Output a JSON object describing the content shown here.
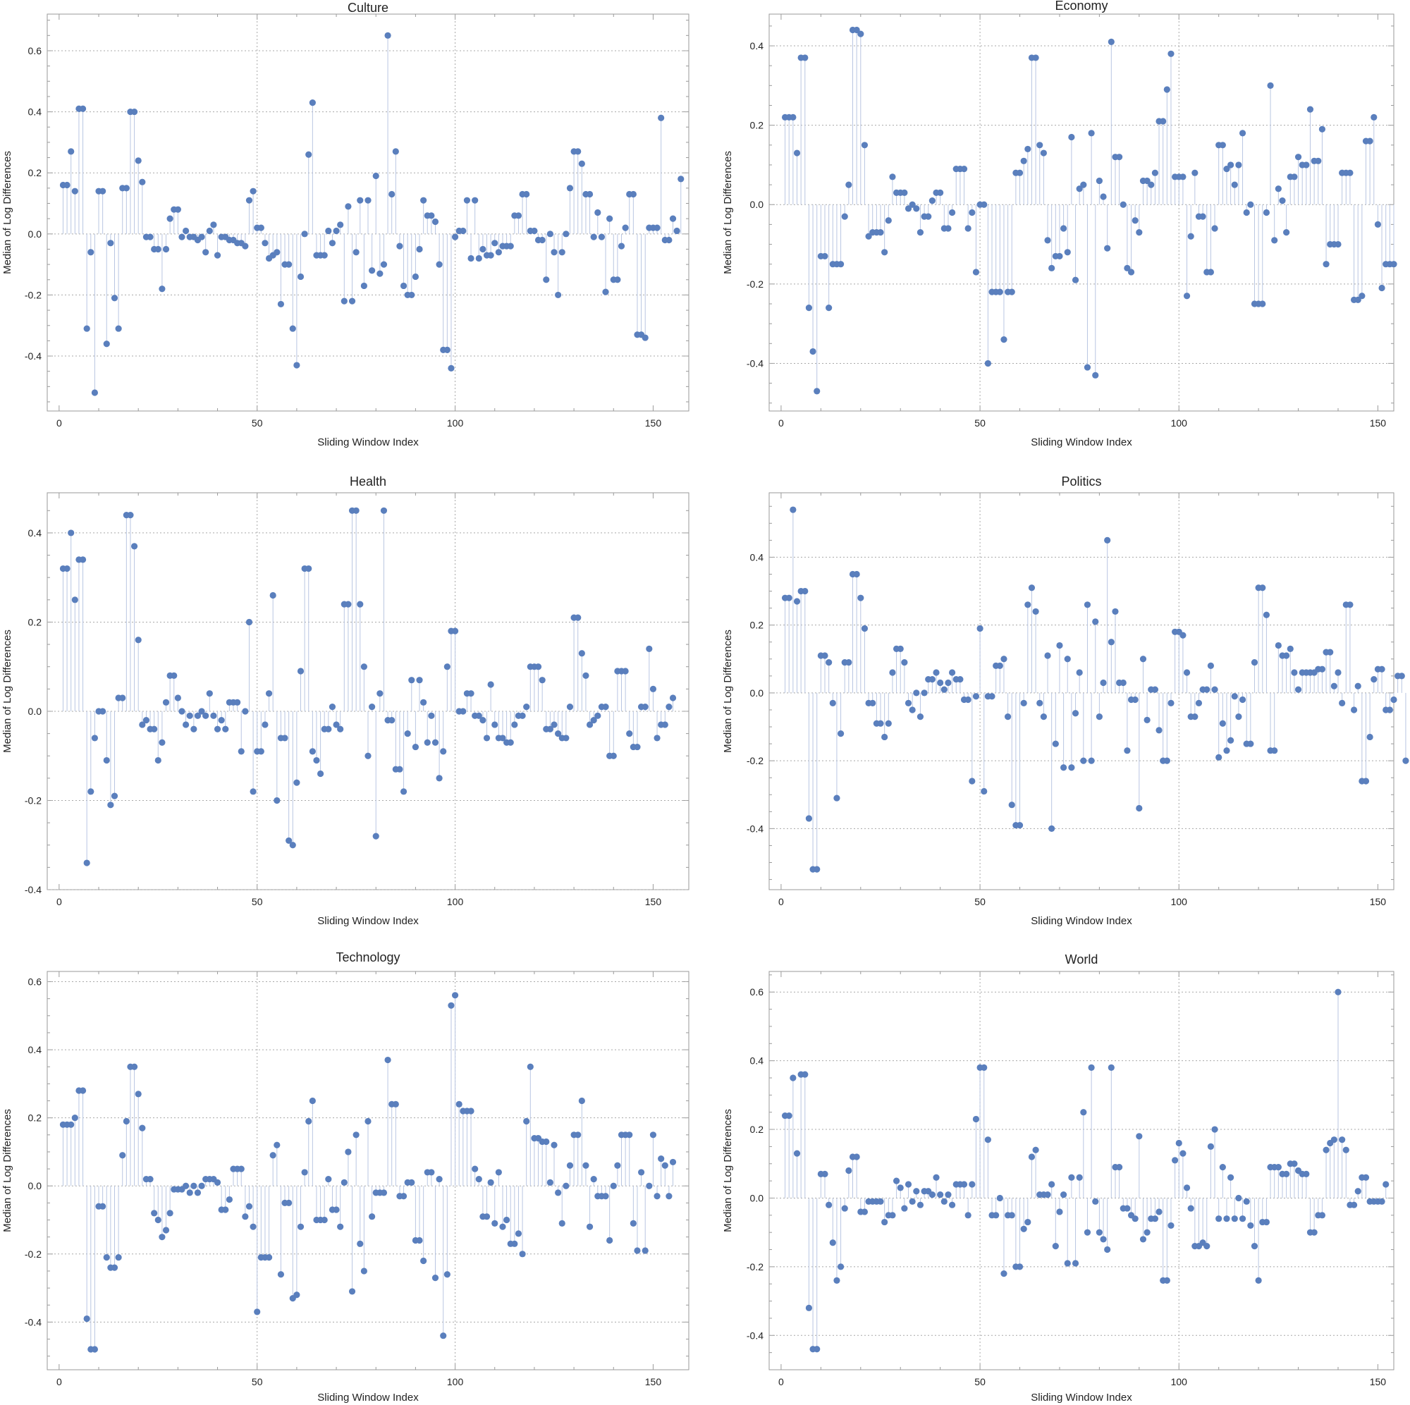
{
  "chart_data": [
    {
      "type": "stem",
      "title": "Culture",
      "xlabel": "Sliding Window Index",
      "ylabel": "Median of Log Differences",
      "xlim": [
        -3,
        159
      ],
      "ylim": [
        -0.58,
        0.72
      ],
      "xticks": [
        0,
        50,
        100,
        150
      ],
      "yticks": [
        -0.4,
        -0.2,
        0.0,
        0.2,
        0.4,
        0.6
      ],
      "ytick_labels": [
        "-0.4",
        "-0.2",
        "0.0",
        "0.2",
        "0.4",
        "0.6"
      ],
      "x_start": 1,
      "values": [
        0.16,
        0.16,
        0.27,
        0.14,
        0.41,
        0.41,
        -0.31,
        -0.06,
        -0.52,
        0.14,
        0.14,
        -0.36,
        -0.03,
        -0.21,
        -0.31,
        0.15,
        0.15,
        0.4,
        0.4,
        0.24,
        0.17,
        -0.01,
        -0.01,
        -0.05,
        -0.05,
        -0.18,
        -0.05,
        0.05,
        0.08,
        0.08,
        -0.01,
        0.01,
        -0.01,
        -0.01,
        -0.02,
        -0.01,
        -0.06,
        0.01,
        0.03,
        -0.07,
        -0.01,
        -0.01,
        -0.02,
        -0.02,
        -0.03,
        -0.03,
        -0.04,
        0.11,
        0.14,
        0.02,
        0.02,
        -0.03,
        -0.08,
        -0.07,
        -0.06,
        -0.23,
        -0.1,
        -0.1,
        -0.31,
        -0.43,
        -0.14,
        0.0,
        0.26,
        0.43,
        -0.07,
        -0.07,
        -0.07,
        0.01,
        -0.03,
        0.01,
        0.03,
        -0.22,
        0.09,
        -0.22,
        -0.06,
        0.11,
        -0.17,
        0.11,
        -0.12,
        0.19,
        -0.13,
        -0.1,
        0.65,
        0.13,
        0.27,
        -0.04,
        -0.17,
        -0.2,
        -0.2,
        -0.14,
        -0.05,
        0.11,
        0.06,
        0.06,
        0.04,
        -0.1,
        -0.38,
        -0.38,
        -0.44,
        -0.01,
        0.01,
        0.01,
        0.11,
        -0.08,
        0.11,
        -0.08,
        -0.05,
        -0.07,
        -0.07,
        -0.03,
        -0.06,
        -0.04,
        -0.04,
        -0.04,
        0.06,
        0.06,
        0.13,
        0.13,
        0.01,
        0.01,
        -0.02,
        -0.02,
        -0.15,
        0.0,
        -0.06,
        -0.2,
        -0.06,
        0.0,
        0.15,
        0.27,
        0.27,
        0.23,
        0.13,
        0.13,
        -0.01,
        0.07,
        -0.01,
        -0.19,
        0.05,
        -0.15,
        -0.15,
        -0.04,
        0.02,
        0.13,
        0.13,
        -0.33,
        -0.33,
        -0.34,
        0.02,
        0.02,
        0.02,
        0.38,
        -0.02,
        -0.02,
        0.05,
        0.01,
        0.18
      ]
    },
    {
      "type": "stem",
      "title": "Economy",
      "xlabel": "Sliding Window Index",
      "ylabel": "Median of Log Differences",
      "xlim": [
        -3,
        154
      ],
      "ylim": [
        -0.52,
        0.48
      ],
      "xticks": [
        0,
        50,
        100,
        150
      ],
      "yticks": [
        -0.4,
        -0.2,
        0.0,
        0.2,
        0.4
      ],
      "ytick_labels": [
        "-0.4",
        "-0.2",
        "0.0",
        "0.2",
        "0.4"
      ],
      "x_start": 1,
      "values": [
        0.22,
        0.22,
        0.22,
        0.13,
        0.37,
        0.37,
        -0.26,
        -0.37,
        -0.47,
        -0.13,
        -0.13,
        -0.26,
        -0.15,
        -0.15,
        -0.15,
        -0.03,
        0.05,
        0.44,
        0.44,
        0.43,
        0.15,
        -0.08,
        -0.07,
        -0.07,
        -0.07,
        -0.12,
        -0.04,
        0.07,
        0.03,
        0.03,
        0.03,
        -0.01,
        0.0,
        -0.01,
        -0.07,
        -0.03,
        -0.03,
        0.01,
        0.03,
        0.03,
        -0.06,
        -0.06,
        -0.02,
        0.09,
        0.09,
        0.09,
        -0.06,
        -0.02,
        -0.17,
        0.0,
        0.0,
        -0.4,
        -0.22,
        -0.22,
        -0.22,
        -0.34,
        -0.22,
        -0.22,
        0.08,
        0.08,
        0.11,
        0.14,
        0.37,
        0.37,
        0.15,
        0.13,
        -0.09,
        -0.16,
        -0.13,
        -0.13,
        -0.06,
        -0.12,
        0.17,
        -0.19,
        0.04,
        0.05,
        -0.41,
        0.18,
        -0.43,
        0.06,
        0.02,
        -0.11,
        0.41,
        0.12,
        0.12,
        0.0,
        -0.16,
        -0.17,
        -0.04,
        -0.07,
        0.06,
        0.06,
        0.05,
        0.08,
        0.21,
        0.21,
        0.29,
        0.38,
        0.07,
        0.07,
        0.07,
        -0.23,
        -0.08,
        0.08,
        -0.03,
        -0.03,
        -0.17,
        -0.17,
        -0.06,
        0.15,
        0.15,
        0.09,
        0.1,
        0.05,
        0.1,
        0.18,
        -0.02,
        0.0,
        -0.25,
        -0.25,
        -0.25,
        -0.02,
        0.3,
        -0.09,
        0.04,
        0.01,
        -0.07,
        0.07,
        0.07,
        0.12,
        0.1,
        0.1,
        0.24,
        0.11,
        0.11,
        0.19,
        -0.15,
        -0.1,
        -0.1,
        -0.1,
        0.08,
        0.08,
        0.08,
        -0.24,
        -0.24,
        -0.23,
        0.16,
        0.16,
        0.22,
        -0.05,
        -0.21,
        -0.15,
        -0.15,
        -0.15
      ]
    },
    {
      "type": "stem",
      "title": "Health",
      "xlabel": "Sliding Window Index",
      "ylabel": "Median of Log Differences",
      "xlim": [
        -3,
        159
      ],
      "ylim": [
        -0.4,
        0.49
      ],
      "xticks": [
        0,
        50,
        100,
        150
      ],
      "yticks": [
        -0.4,
        -0.2,
        0.0,
        0.2,
        0.4
      ],
      "ytick_labels": [
        "-0.4",
        "-0.2",
        "0.0",
        "0.2",
        "0.4"
      ],
      "x_start": 1,
      "values": [
        0.32,
        0.32,
        0.4,
        0.25,
        0.34,
        0.34,
        -0.34,
        -0.18,
        -0.06,
        0.0,
        0.0,
        -0.11,
        -0.21,
        -0.19,
        0.03,
        0.03,
        0.44,
        0.44,
        0.37,
        0.16,
        -0.03,
        -0.02,
        -0.04,
        -0.04,
        -0.11,
        -0.07,
        0.02,
        0.08,
        0.08,
        0.03,
        0.0,
        -0.03,
        -0.01,
        -0.04,
        -0.01,
        0.0,
        -0.01,
        0.04,
        -0.01,
        -0.04,
        -0.02,
        -0.04,
        0.02,
        0.02,
        0.02,
        -0.09,
        0.0,
        0.2,
        -0.18,
        -0.09,
        -0.09,
        -0.03,
        0.04,
        0.26,
        -0.2,
        -0.06,
        -0.06,
        -0.29,
        -0.3,
        -0.16,
        0.09,
        0.32,
        0.32,
        -0.09,
        -0.11,
        -0.14,
        -0.04,
        -0.04,
        0.01,
        -0.03,
        -0.04,
        0.24,
        0.24,
        0.45,
        0.45,
        0.24,
        0.1,
        -0.1,
        0.01,
        -0.28,
        0.04,
        0.45,
        -0.02,
        -0.02,
        -0.13,
        -0.13,
        -0.18,
        -0.05,
        0.07,
        -0.08,
        0.07,
        0.02,
        -0.07,
        -0.01,
        -0.07,
        -0.15,
        -0.09,
        0.1,
        0.18,
        0.18,
        0.0,
        0.0,
        0.04,
        0.04,
        -0.01,
        -0.01,
        -0.02,
        -0.06,
        0.06,
        -0.03,
        -0.06,
        -0.06,
        -0.07,
        -0.07,
        -0.03,
        -0.01,
        -0.01,
        0.01,
        0.1,
        0.1,
        0.1,
        0.07,
        -0.04,
        -0.04,
        -0.03,
        -0.05,
        -0.06,
        -0.06,
        0.01,
        0.21,
        0.21,
        0.13,
        0.08,
        -0.03,
        -0.02,
        -0.01,
        0.01,
        0.01,
        -0.1,
        -0.1,
        0.09,
        0.09,
        0.09,
        -0.05,
        -0.08,
        -0.08,
        0.01,
        0.01,
        0.14,
        0.05,
        -0.06,
        -0.03,
        -0.03,
        0.01,
        0.03
      ]
    },
    {
      "type": "stem",
      "title": "Politics",
      "xlabel": "Sliding Window Index",
      "ylabel": "Median of Log Differences",
      "xlim": [
        -3,
        154
      ],
      "ylim": [
        -0.58,
        0.59
      ],
      "xticks": [
        0,
        50,
        100,
        150
      ],
      "yticks": [
        -0.4,
        -0.2,
        0.0,
        0.2,
        0.4
      ],
      "ytick_labels": [
        "-0.4",
        "-0.2",
        "0.0",
        "0.2",
        "0.4"
      ],
      "x_start": 1,
      "values": [
        0.28,
        0.28,
        0.54,
        0.27,
        0.3,
        0.3,
        -0.37,
        -0.52,
        -0.52,
        0.11,
        0.11,
        0.09,
        -0.03,
        -0.31,
        -0.12,
        0.09,
        0.09,
        0.35,
        0.35,
        0.28,
        0.19,
        -0.03,
        -0.03,
        -0.09,
        -0.09,
        -0.13,
        -0.09,
        0.06,
        0.13,
        0.13,
        0.09,
        -0.03,
        -0.05,
        0.0,
        -0.07,
        0.0,
        0.04,
        0.04,
        0.06,
        0.03,
        0.01,
        0.03,
        0.06,
        0.04,
        0.04,
        -0.02,
        -0.02,
        -0.26,
        -0.01,
        0.19,
        -0.29,
        -0.01,
        -0.01,
        0.08,
        0.08,
        0.1,
        -0.07,
        -0.33,
        -0.39,
        -0.39,
        -0.03,
        0.26,
        0.31,
        0.24,
        -0.03,
        -0.07,
        0.11,
        -0.4,
        -0.15,
        0.14,
        -0.22,
        0.1,
        -0.22,
        -0.06,
        0.06,
        -0.2,
        0.26,
        -0.2,
        0.21,
        -0.07,
        0.03,
        0.45,
        0.15,
        0.24,
        0.03,
        0.03,
        -0.17,
        -0.02,
        -0.02,
        -0.34,
        0.1,
        -0.08,
        0.01,
        0.01,
        -0.11,
        -0.2,
        -0.2,
        -0.03,
        0.18,
        0.18,
        0.17,
        0.06,
        -0.07,
        -0.07,
        -0.03,
        0.01,
        0.01,
        0.08,
        0.01,
        -0.19,
        -0.09,
        -0.17,
        -0.14,
        -0.01,
        -0.07,
        -0.02,
        -0.15,
        -0.15,
        0.09,
        0.31,
        0.31,
        0.23,
        -0.17,
        -0.17,
        0.14,
        0.11,
        0.11,
        0.13,
        0.06,
        0.01,
        0.06,
        0.06,
        0.06,
        0.06,
        0.07,
        0.07,
        0.12,
        0.12,
        0.02,
        0.06,
        -0.03,
        0.26,
        0.26,
        -0.05,
        0.02,
        -0.26,
        -0.26,
        -0.13,
        0.04,
        0.07,
        0.07,
        -0.05,
        -0.05,
        -0.02,
        0.05,
        0.05,
        -0.2
      ]
    },
    {
      "type": "stem",
      "title": "Technology",
      "xlabel": "Sliding Window Index",
      "ylabel": "Median of Log Differences",
      "xlim": [
        -3,
        159
      ],
      "ylim": [
        -0.54,
        0.63
      ],
      "xticks": [
        0,
        50,
        100,
        150
      ],
      "yticks": [
        -0.4,
        -0.2,
        0.0,
        0.2,
        0.4,
        0.6
      ],
      "ytick_labels": [
        "-0.4",
        "-0.2",
        "0.0",
        "0.2",
        "0.4",
        "0.6"
      ],
      "x_start": 1,
      "values": [
        0.18,
        0.18,
        0.18,
        0.2,
        0.28,
        0.28,
        -0.39,
        -0.48,
        -0.48,
        -0.06,
        -0.06,
        -0.21,
        -0.24,
        -0.24,
        -0.21,
        0.09,
        0.19,
        0.35,
        0.35,
        0.27,
        0.17,
        0.02,
        0.02,
        -0.08,
        -0.1,
        -0.15,
        -0.13,
        -0.08,
        -0.01,
        -0.01,
        -0.01,
        0.0,
        -0.02,
        0.0,
        -0.02,
        0.0,
        0.02,
        0.02,
        0.02,
        0.01,
        -0.07,
        -0.07,
        -0.04,
        0.05,
        0.05,
        0.05,
        -0.09,
        -0.06,
        -0.12,
        -0.37,
        -0.21,
        -0.21,
        -0.21,
        0.09,
        0.12,
        -0.26,
        -0.05,
        -0.05,
        -0.33,
        -0.32,
        -0.12,
        0.04,
        0.19,
        0.25,
        -0.1,
        -0.1,
        -0.1,
        0.02,
        -0.07,
        -0.07,
        -0.12,
        0.01,
        0.1,
        -0.31,
        0.15,
        -0.17,
        -0.25,
        0.19,
        -0.09,
        -0.02,
        -0.02,
        -0.02,
        0.37,
        0.24,
        0.24,
        -0.03,
        -0.03,
        0.01,
        0.01,
        -0.16,
        -0.16,
        -0.22,
        0.04,
        0.04,
        -0.27,
        0.02,
        -0.44,
        -0.26,
        0.53,
        0.56,
        0.24,
        0.22,
        0.22,
        0.22,
        0.05,
        0.02,
        -0.09,
        -0.09,
        0.01,
        -0.11,
        0.04,
        -0.12,
        -0.1,
        -0.17,
        -0.17,
        -0.14,
        -0.2,
        0.19,
        0.35,
        0.14,
        0.14,
        0.13,
        0.13,
        0.01,
        0.12,
        -0.02,
        -0.11,
        0.0,
        0.06,
        0.15,
        0.15,
        0.25,
        0.06,
        -0.12,
        0.02,
        -0.03,
        -0.03,
        -0.03,
        -0.16,
        0.0,
        0.06,
        0.15,
        0.15,
        0.15,
        -0.11,
        -0.19,
        0.04,
        -0.19,
        0.0,
        0.15,
        -0.03,
        0.08,
        0.06,
        -0.03,
        0.07
      ]
    },
    {
      "type": "stem",
      "title": "World",
      "xlabel": "Sliding Window Index",
      "ylabel": "Median of Log Differences",
      "xlim": [
        -3,
        154
      ],
      "ylim": [
        -0.5,
        0.66
      ],
      "xticks": [
        0,
        50,
        100,
        150
      ],
      "yticks": [
        -0.4,
        -0.2,
        0.0,
        0.2,
        0.4,
        0.6
      ],
      "ytick_labels": [
        "-0.4",
        "-0.2",
        "0.0",
        "0.2",
        "0.4",
        "0.6"
      ],
      "x_start": 1,
      "values": [
        0.24,
        0.24,
        0.35,
        0.13,
        0.36,
        0.36,
        -0.32,
        -0.44,
        -0.44,
        0.07,
        0.07,
        -0.02,
        -0.13,
        -0.24,
        -0.2,
        -0.03,
        0.08,
        0.12,
        0.12,
        -0.04,
        -0.04,
        -0.01,
        -0.01,
        -0.01,
        -0.01,
        -0.07,
        -0.05,
        -0.05,
        0.05,
        0.03,
        -0.03,
        0.04,
        -0.01,
        0.02,
        -0.02,
        0.02,
        0.02,
        0.01,
        0.06,
        0.01,
        -0.01,
        0.01,
        -0.02,
        0.04,
        0.04,
        0.04,
        -0.05,
        0.04,
        0.23,
        0.38,
        0.38,
        0.17,
        -0.05,
        -0.05,
        0.0,
        -0.22,
        -0.05,
        -0.05,
        -0.2,
        -0.2,
        -0.09,
        -0.07,
        0.12,
        0.14,
        0.01,
        0.01,
        0.01,
        0.04,
        -0.14,
        -0.04,
        0.01,
        -0.19,
        0.06,
        -0.19,
        0.06,
        0.25,
        -0.1,
        0.38,
        -0.01,
        -0.1,
        -0.12,
        -0.15,
        0.38,
        0.09,
        0.09,
        -0.03,
        -0.03,
        -0.05,
        -0.06,
        0.18,
        -0.12,
        -0.1,
        -0.06,
        -0.06,
        -0.04,
        -0.24,
        -0.24,
        -0.08,
        0.11,
        0.16,
        0.13,
        0.03,
        -0.03,
        -0.14,
        -0.14,
        -0.13,
        -0.14,
        0.15,
        0.2,
        -0.06,
        0.09,
        -0.06,
        0.06,
        -0.06,
        0.0,
        -0.06,
        -0.01,
        -0.08,
        -0.14,
        -0.24,
        -0.07,
        -0.07,
        0.09,
        0.09,
        0.09,
        0.07,
        0.07,
        0.1,
        0.1,
        0.08,
        0.07,
        0.07,
        -0.1,
        -0.1,
        -0.05,
        -0.05,
        0.14,
        0.16,
        0.17,
        0.6,
        0.17,
        0.14,
        -0.02,
        -0.02,
        0.02,
        0.06,
        0.06,
        -0.01,
        -0.01,
        -0.01,
        -0.01,
        0.04
      ]
    }
  ]
}
